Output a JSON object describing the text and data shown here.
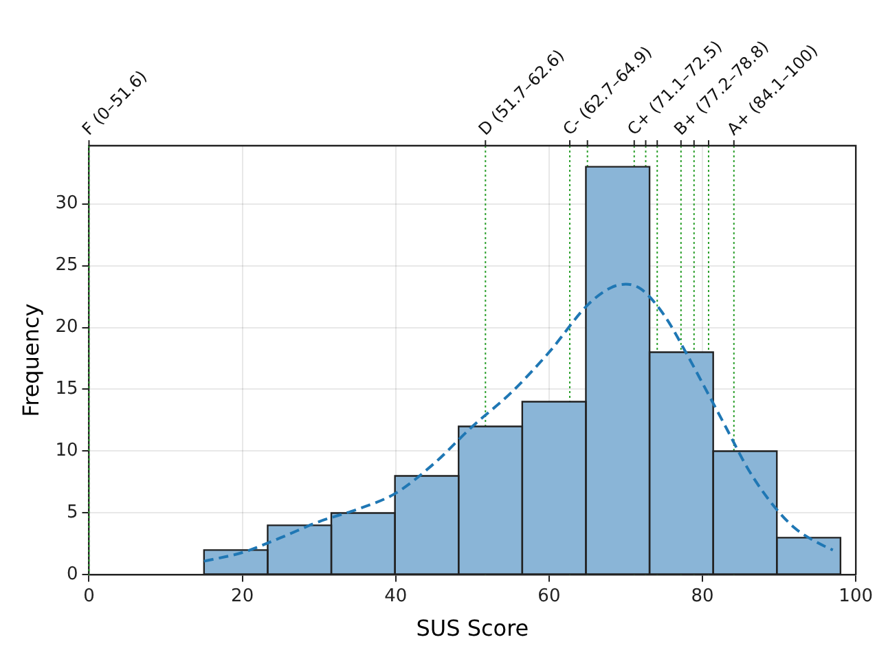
{
  "chart_data": {
    "type": "histogram",
    "xlabel": "SUS Score",
    "ylabel": "Frequency",
    "bins": [
      15,
      23.3,
      31.6,
      39.9,
      48.2,
      56.5,
      64.8,
      73.1,
      81.4,
      89.7,
      98
    ],
    "values": [
      2,
      4,
      5,
      8,
      12,
      14,
      33,
      18,
      10,
      3
    ],
    "color": "#8ab5d7",
    "series": [
      {
        "type": "line",
        "color": "#1f77b4",
        "line_style": "dashed",
        "marker": "none",
        "x": [
          15,
          20,
          25,
          30,
          35,
          40,
          45,
          50,
          55,
          60,
          65,
          68,
          70,
          72,
          75,
          78,
          80,
          83,
          86,
          89,
          92,
          95,
          97
        ],
        "values": [
          1.1,
          1.8,
          3.0,
          4.3,
          5.3,
          6.6,
          9,
          12,
          14.7,
          18,
          21.8,
          23.2,
          23.5,
          23.1,
          21,
          17.8,
          15.5,
          12,
          8.5,
          5.8,
          3.8,
          2.6,
          2.0
        ]
      }
    ],
    "xlim": [
      0,
      100
    ],
    "xticks": [
      0,
      20,
      40,
      60,
      80,
      100
    ],
    "ylim": [
      0,
      34.7
    ],
    "yticks": [
      0,
      5,
      10,
      15,
      20,
      25,
      30
    ],
    "ref_lines": [
      {
        "axis": "x",
        "value": 0,
        "label": "F (0–51.6)",
        "color": "#2ca02c",
        "line_style": "dotted"
      },
      {
        "axis": "x",
        "value": 51.7,
        "label": "D (51.7–62.6)",
        "color": "#2ca02c",
        "line_style": "dotted"
      },
      {
        "axis": "x",
        "value": 62.7,
        "label": "C- (62.7–64.9)",
        "color": "#2ca02c",
        "line_style": "dotted"
      },
      {
        "axis": "x",
        "value": 65,
        "color": "#2ca02c",
        "line_style": "dotted"
      },
      {
        "axis": "x",
        "value": 71.1,
        "label": "C+ (71.1–72.5)",
        "color": "#2ca02c",
        "line_style": "dotted"
      },
      {
        "axis": "x",
        "value": 72.6,
        "color": "#2ca02c",
        "line_style": "dotted"
      },
      {
        "axis": "x",
        "value": 74.1,
        "color": "#2ca02c",
        "line_style": "dotted"
      },
      {
        "axis": "x",
        "value": 77.2,
        "label": "B+ (77.2–78.8)",
        "color": "#2ca02c",
        "line_style": "dotted"
      },
      {
        "axis": "x",
        "value": 78.9,
        "color": "#2ca02c",
        "line_style": "dotted"
      },
      {
        "axis": "x",
        "value": 80.8,
        "color": "#2ca02c",
        "line_style": "dotted"
      },
      {
        "axis": "x",
        "value": 84.1,
        "label": "A+ (84.1–100)",
        "color": "#2ca02c",
        "line_style": "dotted"
      }
    ],
    "grid": true
  }
}
